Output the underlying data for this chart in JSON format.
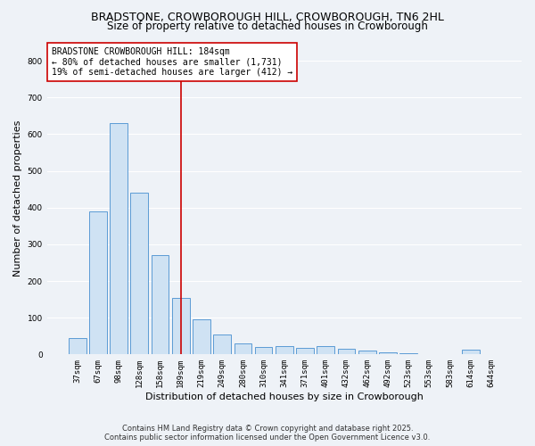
{
  "title1": "BRADSTONE, CROWBOROUGH HILL, CROWBOROUGH, TN6 2HL",
  "title2": "Size of property relative to detached houses in Crowborough",
  "xlabel": "Distribution of detached houses by size in Crowborough",
  "ylabel": "Number of detached properties",
  "categories": [
    "37sqm",
    "67sqm",
    "98sqm",
    "128sqm",
    "158sqm",
    "189sqm",
    "219sqm",
    "249sqm",
    "280sqm",
    "310sqm",
    "341sqm",
    "371sqm",
    "401sqm",
    "432sqm",
    "462sqm",
    "492sqm",
    "523sqm",
    "553sqm",
    "583sqm",
    "614sqm",
    "644sqm"
  ],
  "values": [
    45,
    390,
    630,
    440,
    270,
    155,
    95,
    55,
    30,
    20,
    22,
    18,
    22,
    15,
    10,
    5,
    3,
    2,
    2,
    12,
    2
  ],
  "bar_color": "#cfe2f3",
  "bar_edge_color": "#5b9bd5",
  "vline_x": 5,
  "vline_color": "#cc0000",
  "ylim": [
    0,
    850
  ],
  "yticks": [
    0,
    100,
    200,
    300,
    400,
    500,
    600,
    700,
    800
  ],
  "annotation_text": "BRADSTONE CROWBOROUGH HILL: 184sqm\n← 80% of detached houses are smaller (1,731)\n19% of semi-detached houses are larger (412) →",
  "annotation_box_color": "#ffffff",
  "annotation_box_edge": "#cc0000",
  "footnote1": "Contains HM Land Registry data © Crown copyright and database right 2025.",
  "footnote2": "Contains public sector information licensed under the Open Government Licence v3.0.",
  "background_color": "#eef2f7",
  "grid_color": "#ffffff",
  "title1_fontsize": 9,
  "title2_fontsize": 8.5,
  "axis_label_fontsize": 8,
  "tick_fontsize": 6.5,
  "annotation_fontsize": 7,
  "footnote_fontsize": 6
}
